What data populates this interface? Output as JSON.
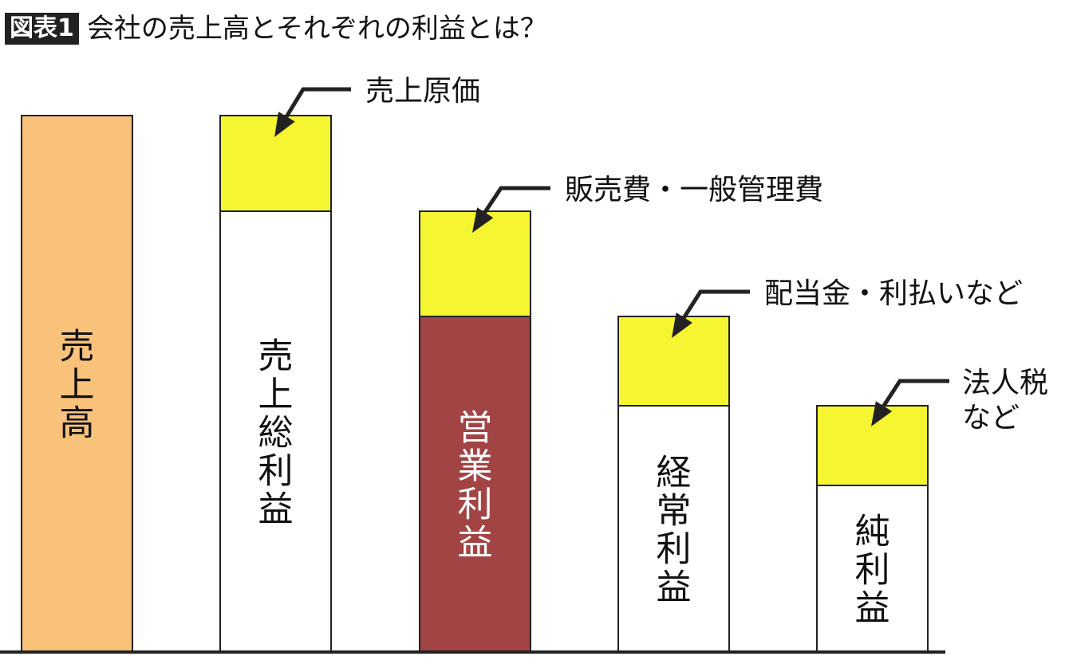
{
  "header": {
    "tag": "図表1",
    "title": "会社の売上高とそれぞれの利益とは？"
  },
  "bars": [
    {
      "profit_label": "売上高",
      "profit_color": "#f9c27a",
      "text_color": "#111111"
    },
    {
      "profit_label": "売上総利益",
      "profit_color": "#ffffff",
      "text_color": "#111111"
    },
    {
      "profit_label": "営業利益",
      "profit_color": "#a24444",
      "text_color": "#ffffff"
    },
    {
      "profit_label": "経常利益",
      "profit_color": "#ffffff",
      "text_color": "#111111"
    },
    {
      "profit_label": "純利益",
      "profit_color": "#ffffff",
      "text_color": "#111111"
    }
  ],
  "costs": [
    {
      "lines": [
        "売上原価"
      ]
    },
    {
      "lines": [
        "販売費・一般管理費"
      ]
    },
    {
      "lines": [
        "配当金・利払いなど"
      ]
    },
    {
      "lines": [
        "法人税",
        "など"
      ]
    }
  ],
  "colors": {
    "cost_fill": "#f5f532",
    "outline": "#222222",
    "baseline": "#222222"
  }
}
